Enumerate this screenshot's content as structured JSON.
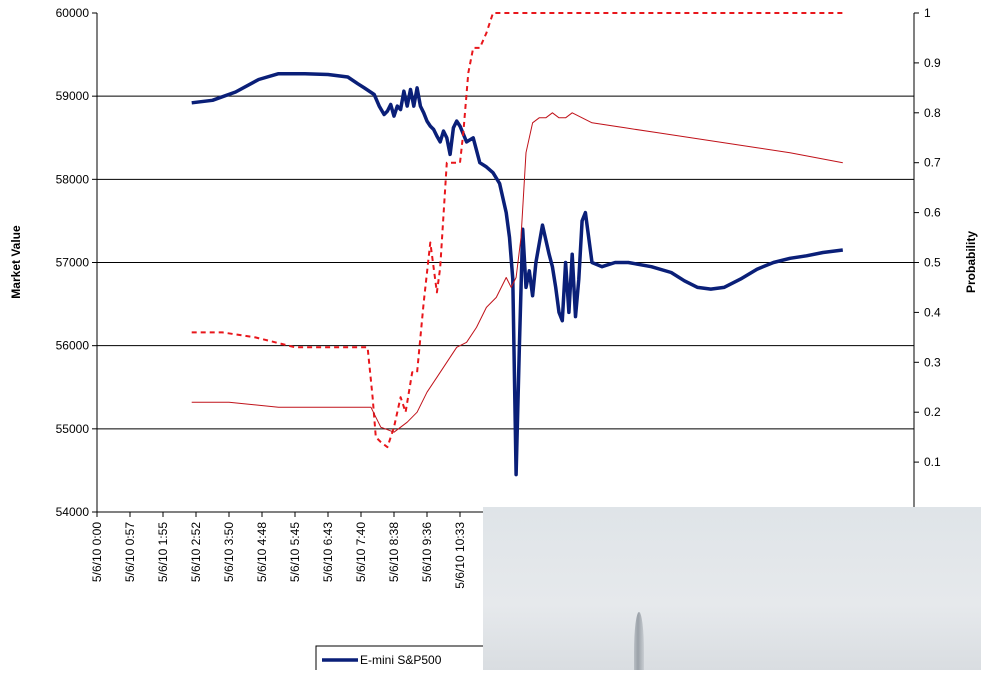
{
  "colors": {
    "emini": "#0a1f78",
    "prob_dashed": "#e8161b",
    "prob_thin": "#c0121a",
    "grid": "#000000",
    "photo": "#e2e6ea"
  },
  "chart_data": {
    "type": "line",
    "xlabel": "",
    "ylabel": "Market Value",
    "y2label": "Probability",
    "ylim": [
      54000,
      60000
    ],
    "y2lim": [
      0,
      1
    ],
    "yticks": [
      54000,
      55000,
      56000,
      57000,
      58000,
      59000,
      60000
    ],
    "y2ticks": [
      0.1,
      0.2,
      0.3,
      0.4,
      0.5,
      0.6,
      0.7,
      0.8,
      0.9,
      1
    ],
    "x_tick_labels": [
      "5/6/10 0:00",
      "5/6/10 0:57",
      "5/6/10 1:55",
      "5/6/10 2:52",
      "5/6/10 3:50",
      "5/6/10 4:48",
      "5/6/10 5:45",
      "5/6/10 6:43",
      "5/6/10 7:40",
      "5/6/10 8:38",
      "5/6/10 9:36",
      "5/6/10 10:33"
    ],
    "x_tick_labels_visible_count": 12,
    "grid": "horizontal",
    "legend_position": "bottom",
    "series": [
      {
        "name": "E-mini S&P500",
        "axis": "left",
        "style": "thick-solid",
        "x": [
          2.87,
          3.5,
          4.2,
          4.9,
          5.5,
          6.3,
          7.0,
          7.6,
          7.9,
          8.1,
          8.4,
          8.55,
          8.7,
          8.8,
          8.9,
          9.0,
          9.1,
          9.2,
          9.3,
          9.4,
          9.5,
          9.6,
          9.7,
          9.8,
          9.9,
          10.0,
          10.1,
          10.2,
          10.3,
          10.4,
          10.5,
          10.6,
          10.7,
          10.8,
          10.9,
          11.0,
          11.2,
          11.4,
          11.6,
          11.8,
          12.0,
          12.2,
          12.4,
          12.5,
          12.6,
          12.7,
          12.8,
          12.9,
          13.0,
          13.1,
          13.2,
          13.3,
          13.5,
          13.7,
          13.8,
          13.9,
          14.0,
          14.1,
          14.2,
          14.3,
          14.4,
          14.5,
          14.6,
          14.7,
          14.8,
          15.0,
          15.3,
          15.7,
          16.1,
          16.8,
          17.4,
          17.8,
          18.2,
          18.6,
          19.0,
          19.5,
          20.0,
          20.5,
          21.0,
          21.5,
          22.0,
          22.6
        ],
        "values": [
          58920,
          58950,
          59050,
          59200,
          59270,
          59270,
          59260,
          59230,
          59150,
          59100,
          59020,
          58880,
          58780,
          58820,
          58900,
          58760,
          58880,
          58840,
          59060,
          58880,
          59080,
          58880,
          59100,
          58880,
          58800,
          58700,
          58640,
          58600,
          58520,
          58450,
          58580,
          58500,
          58300,
          58620,
          58700,
          58640,
          58450,
          58500,
          58200,
          58150,
          58080,
          57950,
          57600,
          57300,
          56800,
          54450,
          56000,
          57400,
          56700,
          56900,
          56600,
          57000,
          57450,
          57100,
          56950,
          56700,
          56400,
          56300,
          57000,
          56400,
          57100,
          56350,
          56800,
          57500,
          57600,
          57000,
          56950,
          57000,
          57000,
          56950,
          56880,
          56780,
          56700,
          56680,
          56700,
          56800,
          56920,
          57000,
          57050,
          57080,
          57120,
          57150
        ]
      },
      {
        "name": "",
        "axis": "right",
        "style": "dashed",
        "x": [
          2.87,
          3.3,
          3.8,
          4.3,
          4.8,
          5.4,
          6.0,
          6.6,
          7.2,
          7.8,
          8.2,
          8.35,
          8.45,
          8.6,
          8.8,
          9.0,
          9.2,
          9.35,
          9.55,
          9.7,
          9.9,
          10.1,
          10.3,
          10.4,
          10.6,
          10.8,
          11.0,
          11.1,
          11.25,
          11.4,
          11.6,
          11.8,
          12.0,
          12.2,
          12.4,
          12.6,
          13.0,
          13.5,
          14.0,
          15.0,
          17.0,
          19.0,
          21.0,
          22.6
        ],
        "values": [
          0.36,
          0.36,
          0.36,
          0.355,
          0.35,
          0.34,
          0.33,
          0.33,
          0.33,
          0.33,
          0.33,
          0.23,
          0.15,
          0.14,
          0.13,
          0.17,
          0.23,
          0.2,
          0.28,
          0.28,
          0.42,
          0.54,
          0.44,
          0.49,
          0.7,
          0.7,
          0.7,
          0.76,
          0.88,
          0.93,
          0.93,
          0.96,
          1.0,
          1.0,
          1.0,
          1.0,
          1.0,
          1.0,
          1.0,
          1.0,
          1.0,
          1.0,
          1.0,
          1.0
        ]
      },
      {
        "name": "",
        "axis": "right",
        "style": "thin-solid",
        "x": [
          2.87,
          4.0,
          5.5,
          7.0,
          8.3,
          8.6,
          9.0,
          9.4,
          9.7,
          10.0,
          10.3,
          10.6,
          10.9,
          11.2,
          11.5,
          11.8,
          12.1,
          12.4,
          12.55,
          12.7,
          12.85,
          13.0,
          13.2,
          13.4,
          13.6,
          13.8,
          14.0,
          14.2,
          14.4,
          15.0,
          16.0,
          17.0,
          18.0,
          19.0,
          20.0,
          21.0,
          22.6
        ],
        "values": [
          0.22,
          0.22,
          0.21,
          0.21,
          0.21,
          0.17,
          0.16,
          0.18,
          0.2,
          0.24,
          0.27,
          0.3,
          0.33,
          0.34,
          0.37,
          0.41,
          0.43,
          0.47,
          0.45,
          0.47,
          0.55,
          0.72,
          0.78,
          0.79,
          0.79,
          0.8,
          0.79,
          0.79,
          0.8,
          0.78,
          0.77,
          0.76,
          0.75,
          0.74,
          0.73,
          0.72,
          0.7
        ]
      }
    ]
  }
}
